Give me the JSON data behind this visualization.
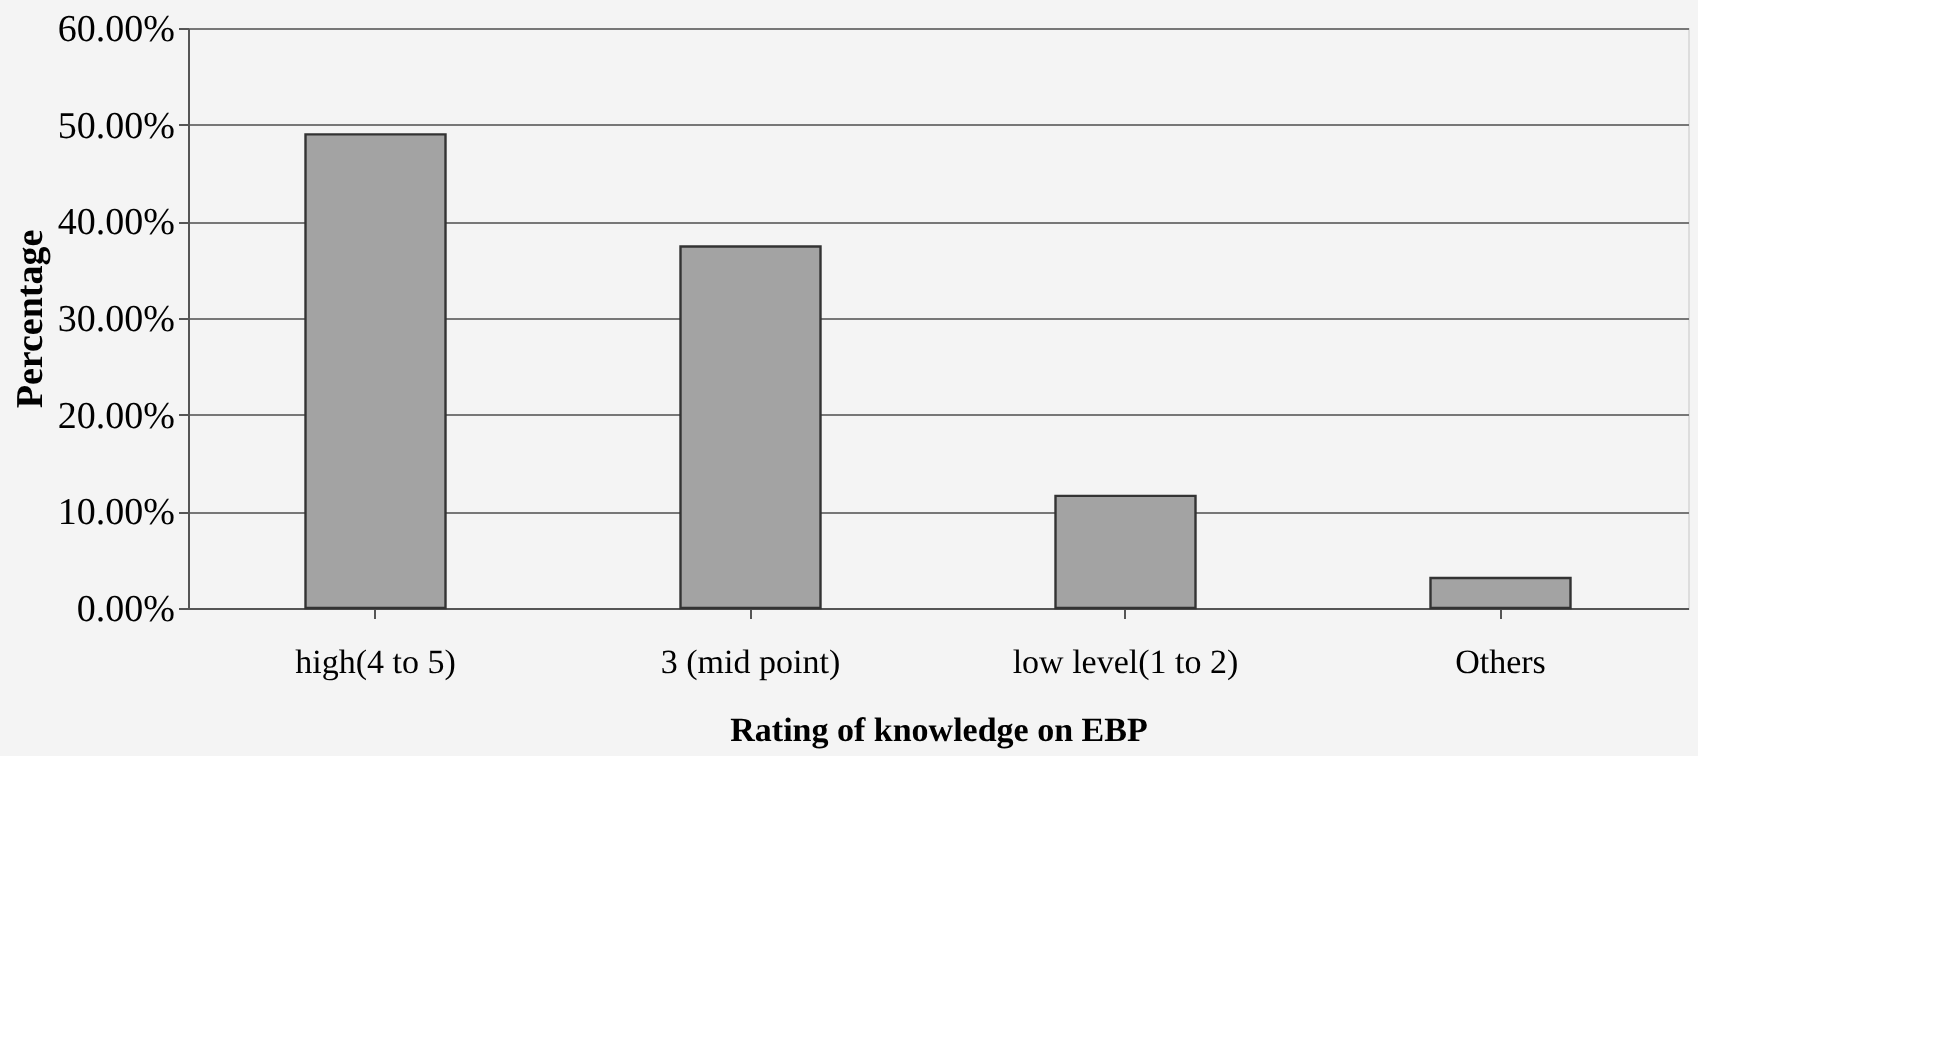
{
  "chart_data": {
    "type": "bar",
    "xlabel": "Rating of knowledge on EBP",
    "ylabel": "Percentage",
    "categories": [
      "high(4 to 5)",
      "3 (mid point)",
      "low level(1 to 2)",
      "Others"
    ],
    "values": [
      49,
      37.4,
      11.6,
      3.1
    ],
    "color": "#a3a3a3",
    "ylim": [
      0,
      60
    ],
    "yticks": [
      {
        "value": 0,
        "label": "0.00%"
      },
      {
        "value": 10,
        "label": "10.00%"
      },
      {
        "value": 20,
        "label": "20.00%"
      },
      {
        "value": 30,
        "label": "30.00%"
      },
      {
        "value": 40,
        "label": "40.00%"
      },
      {
        "value": 50,
        "label": "50.00%"
      },
      {
        "value": 60,
        "label": "60.00%"
      }
    ],
    "grid": "y"
  }
}
